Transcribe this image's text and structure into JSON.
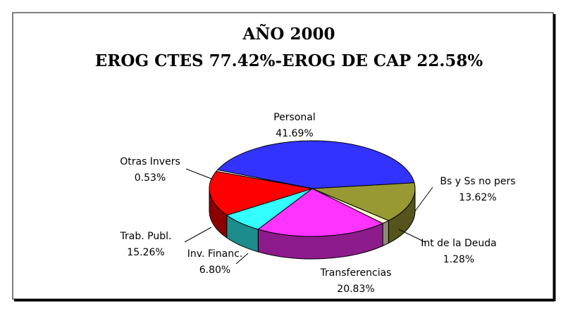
{
  "chart_data": {
    "type": "pie3d",
    "title": "AÑO 2000",
    "subtitle": "EROG CTES 77.42%-EROG DE CAP 22.58%",
    "categories": [
      "Personal",
      "Bs y Ss no pers",
      "Int de la Deuda",
      "Transferencias",
      "Inv. Financ.",
      "Trab. Publ.",
      "Otras Invers"
    ],
    "values": [
      41.69,
      13.62,
      1.28,
      20.83,
      6.8,
      15.26,
      0.53
    ],
    "value_labels": [
      "41.69%",
      "13.62%",
      "1.28%",
      "20.83%",
      "6.80%",
      "15.26%",
      "0.53%"
    ],
    "colors": [
      "#3333ff",
      "#999933",
      "#ffffcc",
      "#ff33ff",
      "#33ffff",
      "#ff0000",
      "#ffffff"
    ]
  }
}
